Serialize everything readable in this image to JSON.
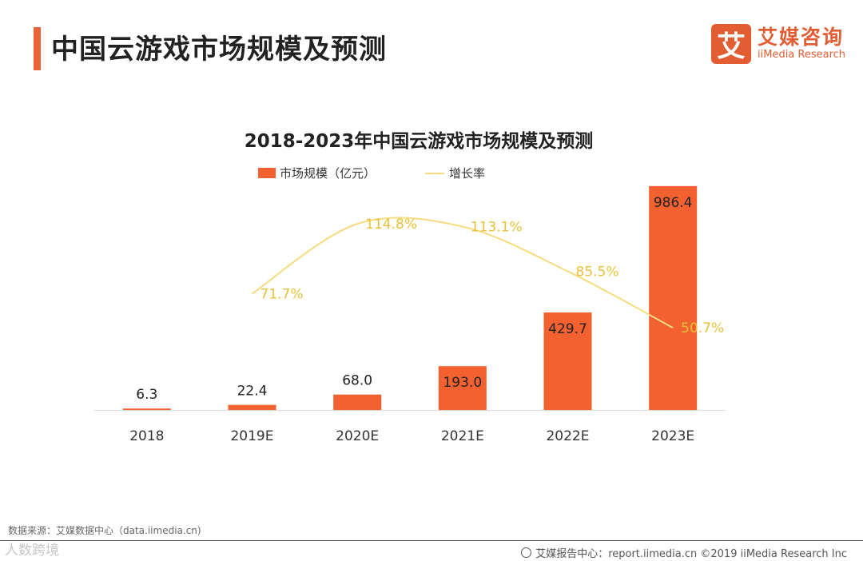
{
  "header": {
    "title": "中国云游戏市场规模及预测"
  },
  "logo": {
    "mark": "艾",
    "name_cn": "艾媒咨询",
    "name_en": "iiMedia Research"
  },
  "footer": {
    "source": "数据来源：艾媒数据中心（data.iimedia.cn)",
    "watermark": "人数跨境",
    "credit": "艾媒报告中心：report.iimedia.cn ©2019  iiMedia Research  Inc"
  },
  "colors": {
    "bar": "#f2612f",
    "line": "#f5dc7f",
    "accent": "#e8623a"
  },
  "chart_data": {
    "type": "bar",
    "title": "2018-2023年中国云游戏市场规模及预测",
    "legend_placement": "top",
    "grid": false,
    "categories": [
      "2018",
      "2019E",
      "2020E",
      "2021E",
      "2022E",
      "2023E"
    ],
    "series": [
      {
        "name": "市场规模（亿元）",
        "type": "bar",
        "values": [
          6.3,
          22.4,
          68.0,
          193.0,
          429.7,
          986.4
        ],
        "labels": [
          "6.3",
          "22.4",
          "68.0",
          "193.0",
          "429.7",
          "986.4"
        ]
      },
      {
        "name": "增长率",
        "type": "line",
        "values": [
          null,
          71.7,
          114.8,
          113.1,
          85.5,
          50.7
        ],
        "labels": [
          "",
          "71.7%",
          "114.8%",
          "113.1%",
          "85.5%",
          "50.7%"
        ]
      }
    ],
    "ylim": [
      0,
      1000
    ],
    "y2lim": [
      0,
      140
    ]
  }
}
